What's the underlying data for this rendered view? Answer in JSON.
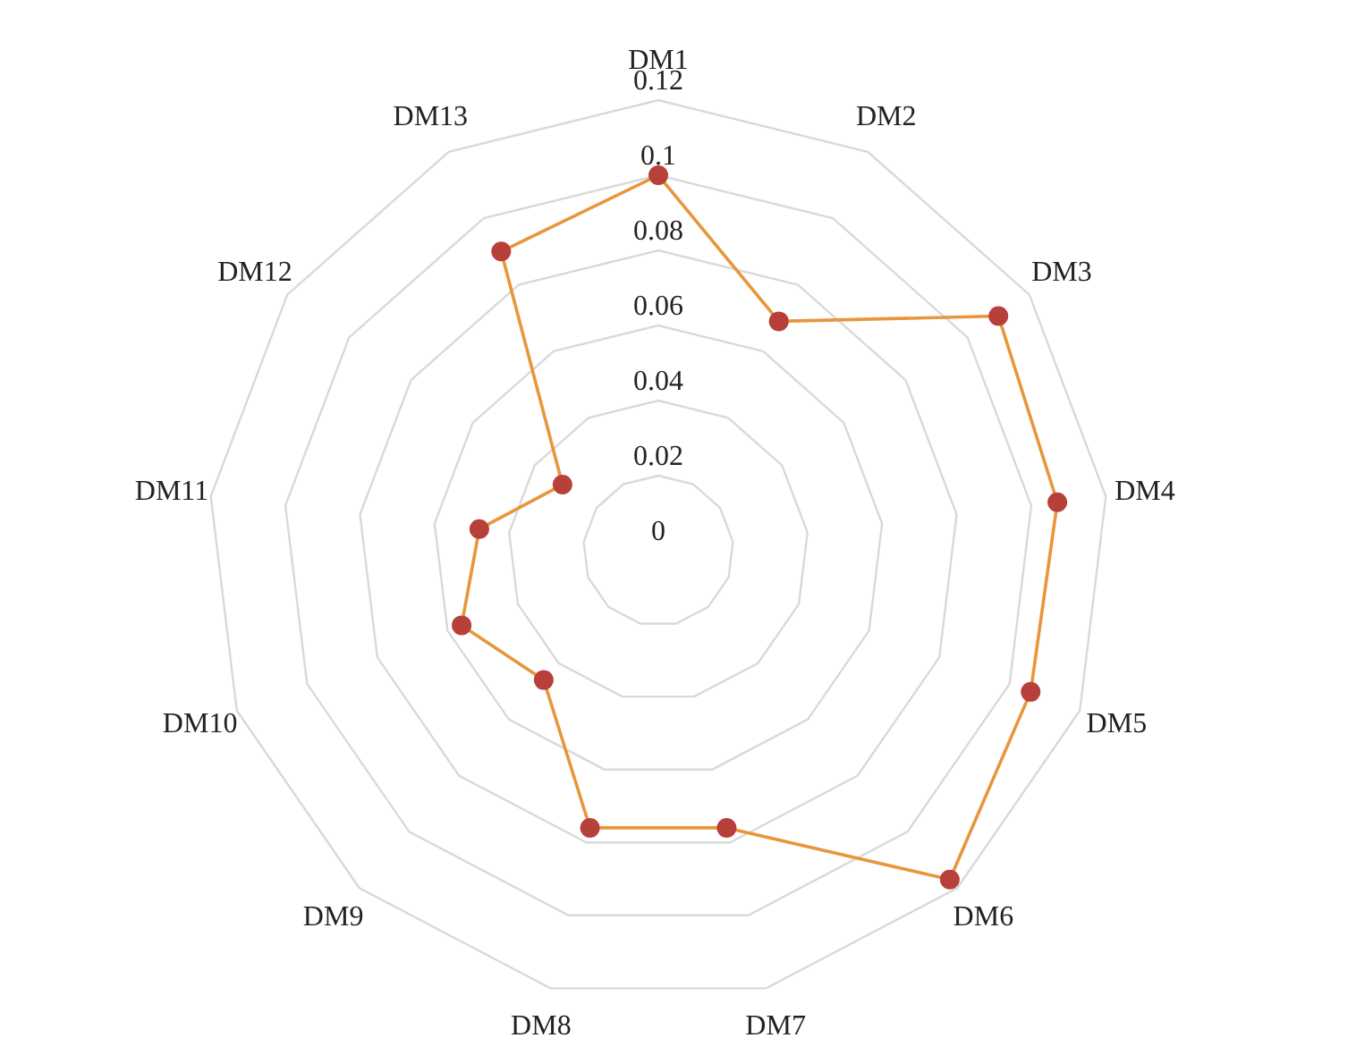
{
  "chart_data": {
    "type": "radar",
    "categories": [
      "DM1",
      "DM2",
      "DM3",
      "DM4",
      "DM5",
      "DM6",
      "DM7",
      "DM8",
      "DM9",
      "DM10",
      "DM11",
      "DM12",
      "DM13"
    ],
    "series": [
      {
        "color": "#e8963c",
        "values": [
          0.1,
          0.069,
          0.11,
          0.107,
          0.106,
          0.117,
          0.076,
          0.076,
          0.046,
          0.056,
          0.048,
          0.031,
          0.09
        ]
      }
    ],
    "ylim": [
      0,
      0.12
    ],
    "yticks": [
      0,
      0.02,
      0.04,
      0.06,
      0.08,
      0.1,
      0.12
    ],
    "marker": "circle",
    "grid": true
  }
}
